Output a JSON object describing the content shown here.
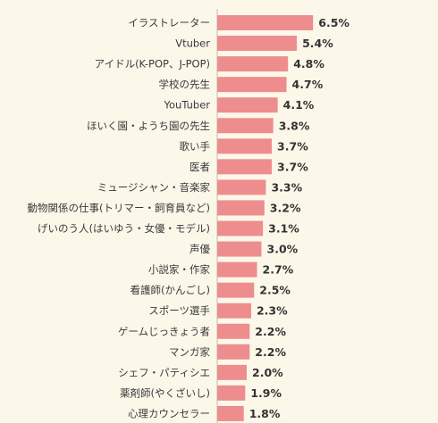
{
  "chart_data": {
    "type": "bar",
    "orientation": "horizontal",
    "categories": [
      "イラストレーター",
      "Vtuber",
      "アイドル(K-POP、J-POP)",
      "学校の先生",
      "YouTuber",
      "ほいく園・ようち園の先生",
      "歌い手",
      "医者",
      "ミュージシャン・音楽家",
      "動物関係の仕事(トリマー・飼育員など)",
      "げいのう人(はいゆう・女優・モデル)",
      "声優",
      "小説家・作家",
      "看護師(かんごし)",
      "スポーツ選手",
      "ゲームじっきょう者",
      "マンガ家",
      "シェフ・パティシエ",
      "薬剤師(やくざいし)",
      "心理カウンセラー"
    ],
    "values": [
      6.5,
      5.4,
      4.8,
      4.7,
      4.1,
      3.8,
      3.7,
      3.7,
      3.3,
      3.2,
      3.1,
      3.0,
      2.7,
      2.5,
      2.3,
      2.2,
      2.2,
      2.0,
      1.9,
      1.8
    ],
    "value_labels": [
      "6.5%",
      "5.4%",
      "4.8%",
      "4.7%",
      "4.1%",
      "3.8%",
      "3.7%",
      "3.7%",
      "3.3%",
      "3.2%",
      "3.1%",
      "3.0%",
      "2.7%",
      "2.5%",
      "2.3%",
      "2.2%",
      "2.2%",
      "2.0%",
      "1.9%",
      "1.8%"
    ],
    "unit": "%",
    "grid": false,
    "legend": false,
    "colors": {
      "bar": "#ee8d8d",
      "background": "#fbf8ea",
      "axis": "#bdbdbd"
    }
  }
}
